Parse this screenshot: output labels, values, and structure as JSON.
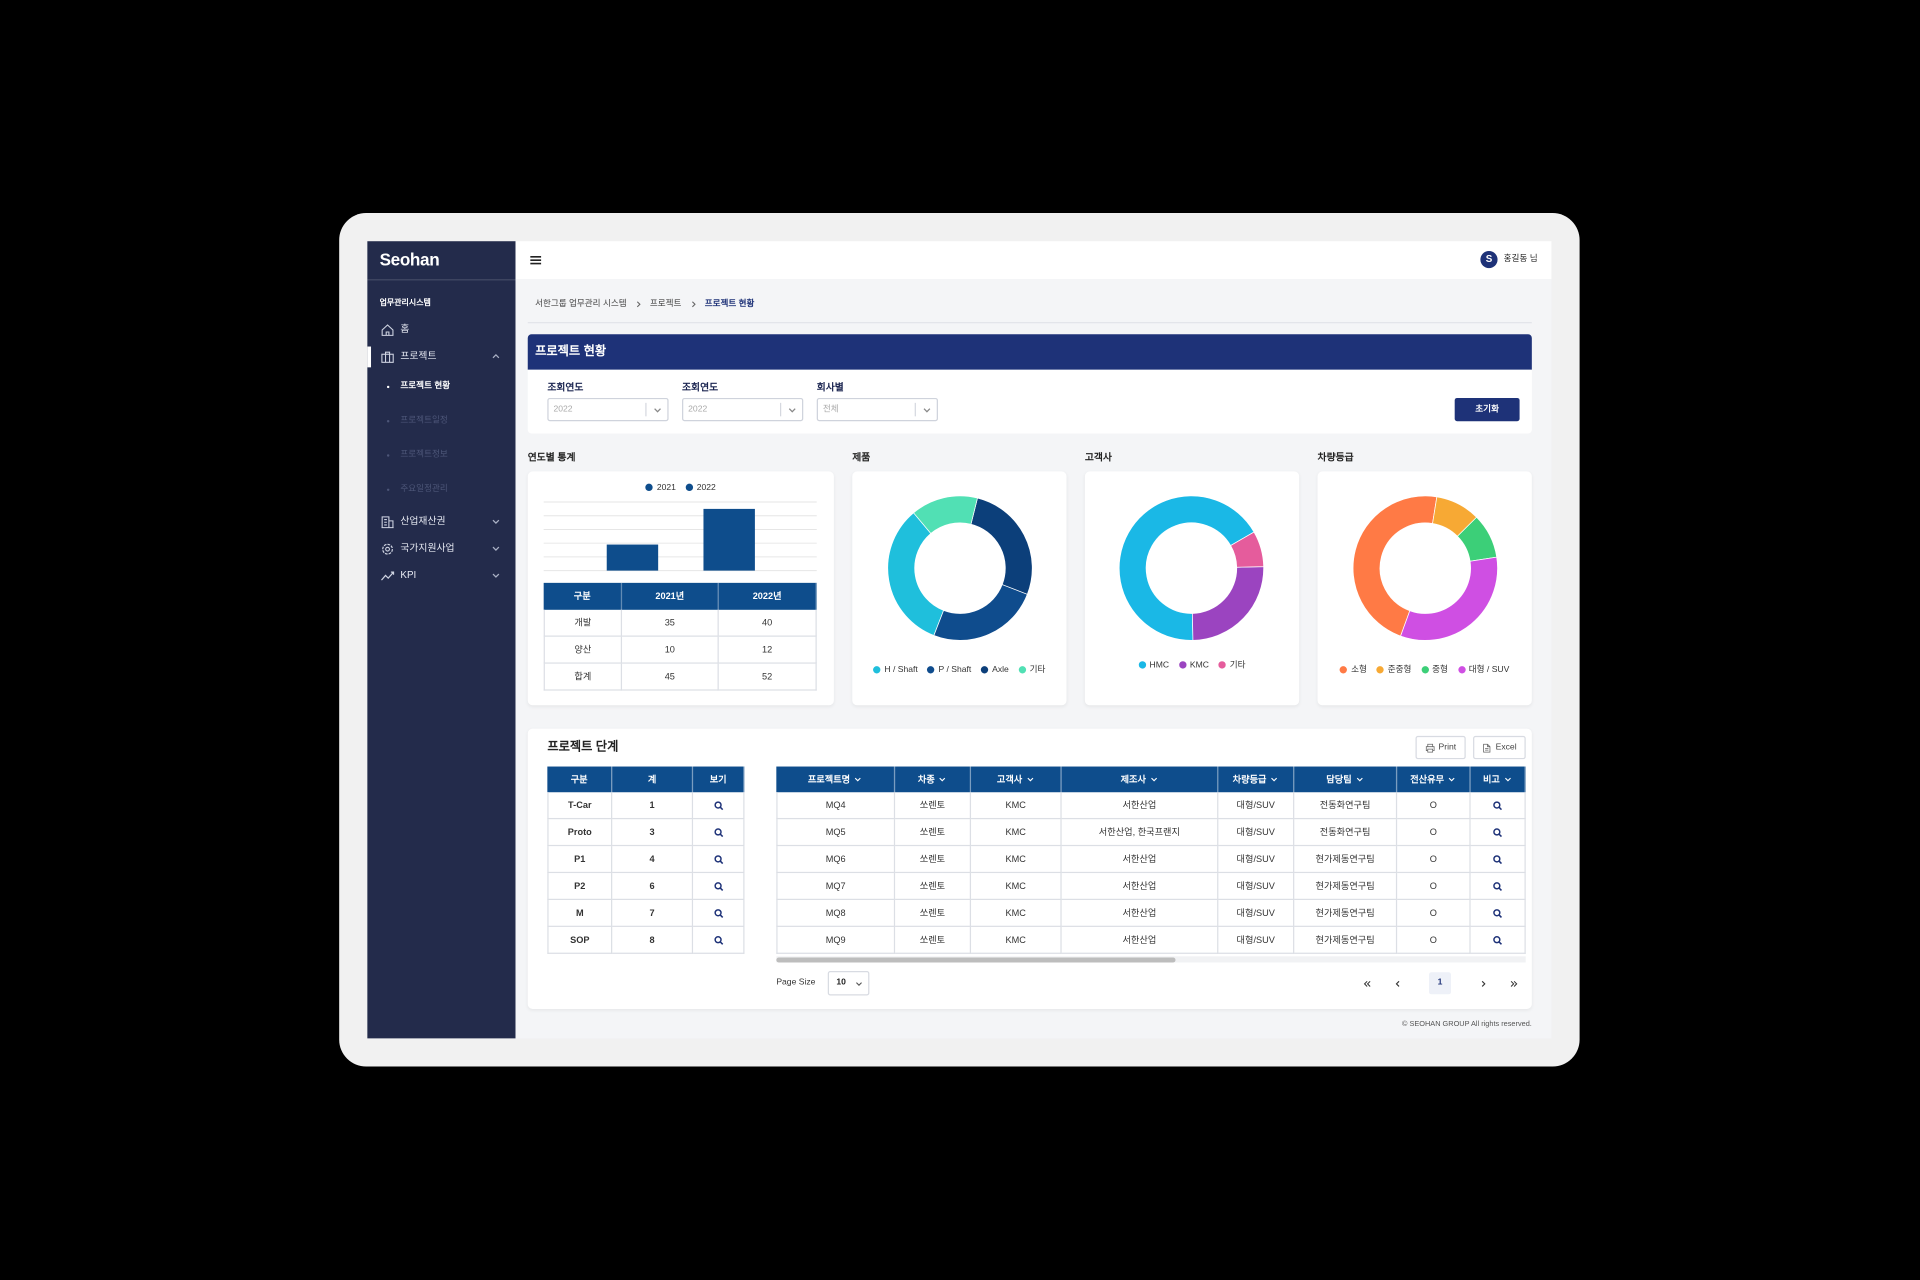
{
  "sidebar": {
    "logo": "Seohan",
    "section": "업무관리시스템",
    "menu": [
      {
        "label": "홈"
      },
      {
        "label": "프로젝트",
        "children": [
          "프로젝트 현황",
          "프로젝트일정",
          "프로젝트정보",
          "주요일정관리"
        ]
      },
      {
        "label": "산업재산권"
      },
      {
        "label": "국가지원사업"
      },
      {
        "label": "KPI"
      }
    ]
  },
  "topbar": {
    "avatar": "S",
    "user": "홍길동 님"
  },
  "breadcrumb": [
    "서한그룹 업무관리 시스템",
    "프로젝트",
    "프로젝트 현황"
  ],
  "panel": {
    "title": "프로젝트 현황",
    "filters": [
      {
        "label": "조회연도",
        "value": "2022"
      },
      {
        "label": "조회연도",
        "value": "2022"
      },
      {
        "label": "회사별",
        "value": "전체"
      }
    ],
    "reset": "초기화"
  },
  "chart_data": [
    {
      "type": "bar",
      "title": "연도별 통계",
      "categories": [
        null
      ],
      "series": [
        {
          "name": "2021",
          "color": "#0e4d8c",
          "values": [
            19
          ]
        },
        {
          "name": "2022",
          "color": "#0e4d8c",
          "values": [
            45
          ]
        }
      ],
      "ylim": [
        0,
        50
      ],
      "yticks": [
        0,
        10,
        20,
        30,
        40,
        50
      ],
      "grid": true
    },
    {
      "type": "pie",
      "title": "제품",
      "categories": [
        "H / Shaft",
        "P / Shaft",
        "Axle",
        "기타"
      ],
      "values": [
        33,
        25,
        27,
        15
      ],
      "colors": [
        "#1fbfdc",
        "#0f4c8d",
        "#0c3f7a",
        "#51e0b4"
      ]
    },
    {
      "type": "pie",
      "title": "고객사",
      "categories": [
        "HMC",
        "KMC",
        "기타"
      ],
      "values": [
        67,
        25,
        8
      ],
      "colors": [
        "#1ab8e6",
        "#9b44c0",
        "#e55c9c"
      ]
    },
    {
      "type": "pie",
      "title": "차량등급",
      "categories": [
        "소형",
        "준중형",
        "중형",
        "대형 / SUV"
      ],
      "values": [
        47,
        10,
        10,
        33
      ],
      "colors": [
        "#ff7a45",
        "#f7a934",
        "#3ccf78",
        "#cf4fe3"
      ]
    }
  ],
  "yearly_table": {
    "header": [
      "구분",
      "2021년",
      "2022년"
    ],
    "rows": [
      [
        "개발",
        35,
        40
      ],
      [
        "양산",
        10,
        12
      ],
      [
        "합계",
        45,
        52
      ]
    ]
  },
  "project_stage": {
    "title": "프로젝트 단계",
    "buttons": [
      "Print",
      "Excel"
    ],
    "stage_table": {
      "header": [
        "구분",
        "계",
        "보기"
      ],
      "rows": [
        [
          "T-Car",
          1
        ],
        [
          "Proto",
          3
        ],
        [
          "P1",
          4
        ],
        [
          "P2",
          6
        ],
        [
          "M",
          7
        ],
        [
          "SOP",
          8
        ]
      ]
    },
    "project_table": {
      "header": [
        "프로젝트명",
        "차종",
        "고객사",
        "제조사",
        "차량등급",
        "담당팀",
        "전산유무",
        "비고"
      ],
      "rows": [
        [
          "MQ4",
          "쏘렌토",
          "KMC",
          "서한산업",
          "대형/SUV",
          "전동화연구팀",
          "O"
        ],
        [
          "MQ5",
          "쏘렌토",
          "KMC",
          "서한산업, 한국프랜지",
          "대형/SUV",
          "전동화연구팀",
          "O"
        ],
        [
          "MQ6",
          "쏘렌토",
          "KMC",
          "서한산업",
          "대형/SUV",
          "현가제동연구팀",
          "O"
        ],
        [
          "MQ7",
          "쏘렌토",
          "KMC",
          "서한산업",
          "대형/SUV",
          "현가제동연구팀",
          "O"
        ],
        [
          "MQ8",
          "쏘렌토",
          "KMC",
          "서한산업",
          "대형/SUV",
          "현가제동연구팀",
          "O"
        ],
        [
          "MQ9",
          "쏘렌토",
          "KMC",
          "서한산업",
          "대형/SUV",
          "현가제동연구팀",
          "O"
        ]
      ]
    },
    "pagination": {
      "page_size_label": "Page Size",
      "page_size": 10,
      "current": 1
    }
  },
  "footer": "© SEOHAN GROUP All rights reserved."
}
